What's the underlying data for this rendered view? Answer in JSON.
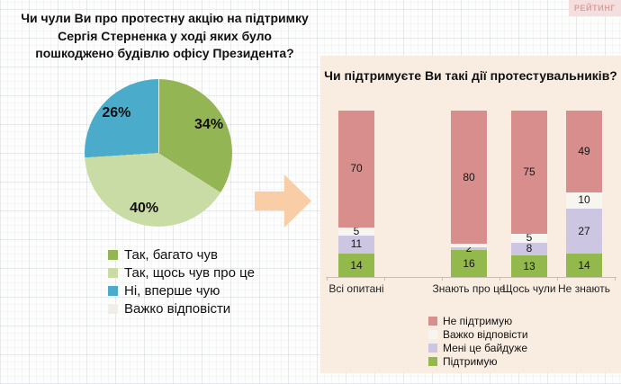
{
  "brand": {
    "logo_text": "РЕЙТИНГ"
  },
  "accents": {
    "panel_bg": "#f9ecdf",
    "arrow": "#f9cda6",
    "logo_bg": "#f5dede",
    "logo_text": "#d9a0a0",
    "axis": "#c8beb4"
  },
  "chart_data": [
    {
      "type": "pie",
      "title": "Чи чули Ви про протестну акцію на підтримку Сергія Стерненка у ході яких було пошкоджено будівлю офісу Президента?",
      "labels": [
        "Так, багато чув",
        "Так, щось чув про це",
        "Ні, вперше чую",
        "Важко відповісти"
      ],
      "values": [
        34,
        40,
        26,
        0
      ],
      "colors": [
        "#94b553",
        "#cadca5",
        "#4aabca",
        "#efeee9"
      ],
      "unit": "%",
      "start_angle_deg": 0,
      "direction": "clockwise",
      "legend_position": "bottom-left"
    },
    {
      "type": "bar",
      "stacked": true,
      "title": "Чи підтримуєте Ви такі дії протестувальників?",
      "categories": [
        "Всі опитані",
        "Знають про це",
        "Щось чули",
        "Не знають"
      ],
      "series_bottom_to_top": [
        {
          "name": "Підтримую",
          "color": "#93b84b",
          "values": [
            14,
            16,
            13,
            14
          ]
        },
        {
          "name": "Мені це байдуже",
          "color": "#cdc6e2",
          "values": [
            11,
            2,
            8,
            27
          ]
        },
        {
          "name": "Важко відповісти",
          "color": "#f6f5f0",
          "values": [
            5,
            2,
            5,
            10
          ]
        },
        {
          "name": "Не підтримую",
          "color": "#d98e8e",
          "values": [
            70,
            80,
            75,
            49
          ]
        }
      ],
      "legend_top_to_bottom": [
        "Не підтримую",
        "Важко відповісти",
        "Мені це байдуже",
        "Підтримую"
      ],
      "value_labels_shown": true,
      "ylim": [
        0,
        100
      ],
      "grid": false,
      "legend_position": "bottom-right"
    }
  ]
}
